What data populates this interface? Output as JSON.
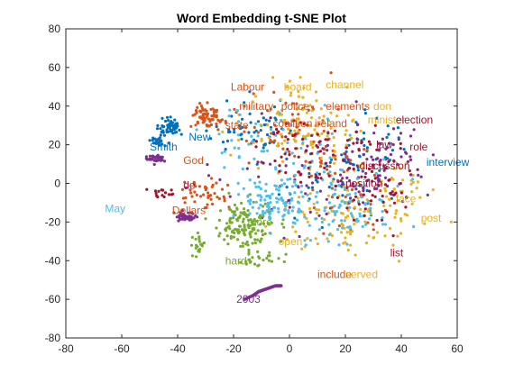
{
  "chart_data": {
    "type": "scatter",
    "title": "Word Embedding t-SNE Plot",
    "xlabel": "",
    "ylabel": "",
    "xlim": [
      -80,
      60
    ],
    "ylim": [
      -80,
      80
    ],
    "xticks": [
      -80,
      -60,
      -40,
      -20,
      0,
      20,
      40,
      60
    ],
    "yticks": [
      -80,
      -60,
      -40,
      -20,
      0,
      20,
      40,
      60,
      80
    ],
    "grid": false,
    "legend": "none",
    "palette": [
      "#0072BD",
      "#D95319",
      "#EDB120",
      "#7E2F8E",
      "#77AC30",
      "#4DBEEE",
      "#A2142F"
    ],
    "clusters": [
      {
        "color": 0,
        "cx": -43,
        "cy": 29,
        "sx": 3,
        "sy": 3,
        "n": 60
      },
      {
        "color": 0,
        "cx": -47,
        "cy": 22,
        "sx": 2,
        "sy": 1.5,
        "n": 25
      },
      {
        "color": 0,
        "cx": -12,
        "cy": 28,
        "sx": 12,
        "sy": 10,
        "n": 60
      },
      {
        "color": 0,
        "cx": 28,
        "cy": 20,
        "sx": 10,
        "sy": 10,
        "n": 40
      },
      {
        "color": 0,
        "cx": 15,
        "cy": -5,
        "sx": 15,
        "sy": 15,
        "n": 40
      },
      {
        "color": 1,
        "cx": -30,
        "cy": 35,
        "sx": 4,
        "sy": 4,
        "n": 70
      },
      {
        "color": 1,
        "cx": -30,
        "cy": -5,
        "sx": 6,
        "sy": 5,
        "n": 45
      },
      {
        "color": 1,
        "cx": 0,
        "cy": 30,
        "sx": 15,
        "sy": 15,
        "n": 60
      },
      {
        "color": 1,
        "cx": 20,
        "cy": 0,
        "sx": 15,
        "sy": 15,
        "n": 45
      },
      {
        "color": 2,
        "cx": 5,
        "cy": 30,
        "sx": 15,
        "sy": 15,
        "n": 110
      },
      {
        "color": 2,
        "cx": 20,
        "cy": -20,
        "sx": 15,
        "sy": 15,
        "n": 90
      },
      {
        "color": 2,
        "cx": 40,
        "cy": -5,
        "sx": 8,
        "sy": 15,
        "n": 40
      },
      {
        "color": 3,
        "cx": -48,
        "cy": 13,
        "sx": 2,
        "sy": 1.5,
        "n": 35
      },
      {
        "color": 3,
        "cx": -37,
        "cy": -17,
        "sx": 3,
        "sy": 2,
        "n": 45
      },
      {
        "color": 3,
        "cx": 30,
        "cy": 10,
        "sx": 15,
        "sy": 15,
        "n": 90
      },
      {
        "color": 3,
        "cx": 0,
        "cy": 0,
        "sx": 20,
        "sy": 20,
        "n": 40
      },
      {
        "color": 4,
        "cx": -15,
        "cy": -22,
        "sx": 8,
        "sy": 9,
        "n": 140
      },
      {
        "color": 4,
        "cx": -10,
        "cy": -40,
        "sx": 5,
        "sy": 3,
        "n": 25
      },
      {
        "color": 4,
        "cx": -33,
        "cy": -32,
        "sx": 3,
        "sy": 5,
        "n": 20
      },
      {
        "color": 5,
        "cx": -5,
        "cy": -10,
        "sx": 8,
        "sy": 8,
        "n": 100
      },
      {
        "color": 5,
        "cx": 20,
        "cy": -10,
        "sx": 15,
        "sy": 15,
        "n": 100
      },
      {
        "color": 5,
        "cx": -5,
        "cy": 20,
        "sx": 20,
        "sy": 15,
        "n": 60
      },
      {
        "color": 6,
        "cx": 10,
        "cy": 15,
        "sx": 20,
        "sy": 15,
        "n": 70
      },
      {
        "color": 6,
        "cx": 35,
        "cy": 0,
        "sx": 8,
        "sy": 15,
        "n": 50
      },
      {
        "color": 6,
        "cx": -45,
        "cy": -5,
        "sx": 3,
        "sy": 2,
        "n": 15
      }
    ],
    "arcs": [
      {
        "color": 3,
        "points": [
          [
            -16,
            -60
          ],
          [
            -13,
            -58
          ],
          [
            -11,
            -56
          ],
          [
            -9,
            -55
          ],
          [
            -7,
            -54
          ],
          [
            -5,
            -53
          ],
          [
            -3,
            -53
          ]
        ],
        "n": 40
      }
    ],
    "annotations": [
      {
        "text": "Labour",
        "x": -21,
        "y": 50,
        "color": 1
      },
      {
        "text": "board",
        "x": -2,
        "y": 50,
        "color": 2
      },
      {
        "text": "channel",
        "x": 13,
        "y": 51,
        "color": 2
      },
      {
        "text": "military",
        "x": -18,
        "y": 40,
        "color": 1
      },
      {
        "text": "police",
        "x": -3,
        "y": 40,
        "color": 1
      },
      {
        "text": "elements",
        "x": 13,
        "y": 40,
        "color": 1
      },
      {
        "text": "don",
        "x": 30,
        "y": 40,
        "color": 2
      },
      {
        "text": "state",
        "x": -23,
        "y": 30,
        "color": 1
      },
      {
        "text": "coalition",
        "x": -6,
        "y": 31,
        "color": 1
      },
      {
        "text": "ireland",
        "x": 9,
        "y": 31,
        "color": 1
      },
      {
        "text": "minister",
        "x": 28,
        "y": 33,
        "color": 2
      },
      {
        "text": "election",
        "x": 38,
        "y": 33,
        "color": 6
      },
      {
        "text": "New",
        "x": -36,
        "y": 24,
        "color": 0
      },
      {
        "text": "Smith",
        "x": -50,
        "y": 19,
        "color": 0
      },
      {
        "text": "role",
        "x": 43,
        "y": 19,
        "color": 6
      },
      {
        "text": "law",
        "x": 31,
        "y": 20,
        "color": 6
      },
      {
        "text": "God",
        "x": -38,
        "y": 12,
        "color": 1
      },
      {
        "text": "interview",
        "x": 49,
        "y": 11,
        "color": 0
      },
      {
        "text": "discussion",
        "x": 25,
        "y": 9,
        "color": 6
      },
      {
        "text": "position",
        "x": 20,
        "y": 0,
        "color": 6
      },
      {
        "text": "de",
        "x": -38,
        "y": -1,
        "color": 6
      },
      {
        "text": "May",
        "x": -66,
        "y": -13,
        "color": 5
      },
      {
        "text": "Dollars",
        "x": -42,
        "y": -14,
        "color": 1
      },
      {
        "text": "face",
        "x": 38,
        "y": -8,
        "color": 2
      },
      {
        "text": "post",
        "x": 47,
        "y": -18,
        "color": 2
      },
      {
        "text": "more",
        "x": -15,
        "y": -20,
        "color": 4
      },
      {
        "text": "open",
        "x": -4,
        "y": -30,
        "color": 2
      },
      {
        "text": "hard",
        "x": -23,
        "y": -40,
        "color": 4
      },
      {
        "text": "list",
        "x": 36,
        "y": -36,
        "color": 6
      },
      {
        "text": "include",
        "x": 10,
        "y": -47,
        "color": 1
      },
      {
        "text": "served",
        "x": 20,
        "y": -47,
        "color": 2
      },
      {
        "text": "2003",
        "x": -19,
        "y": -60,
        "color": 3
      }
    ]
  }
}
